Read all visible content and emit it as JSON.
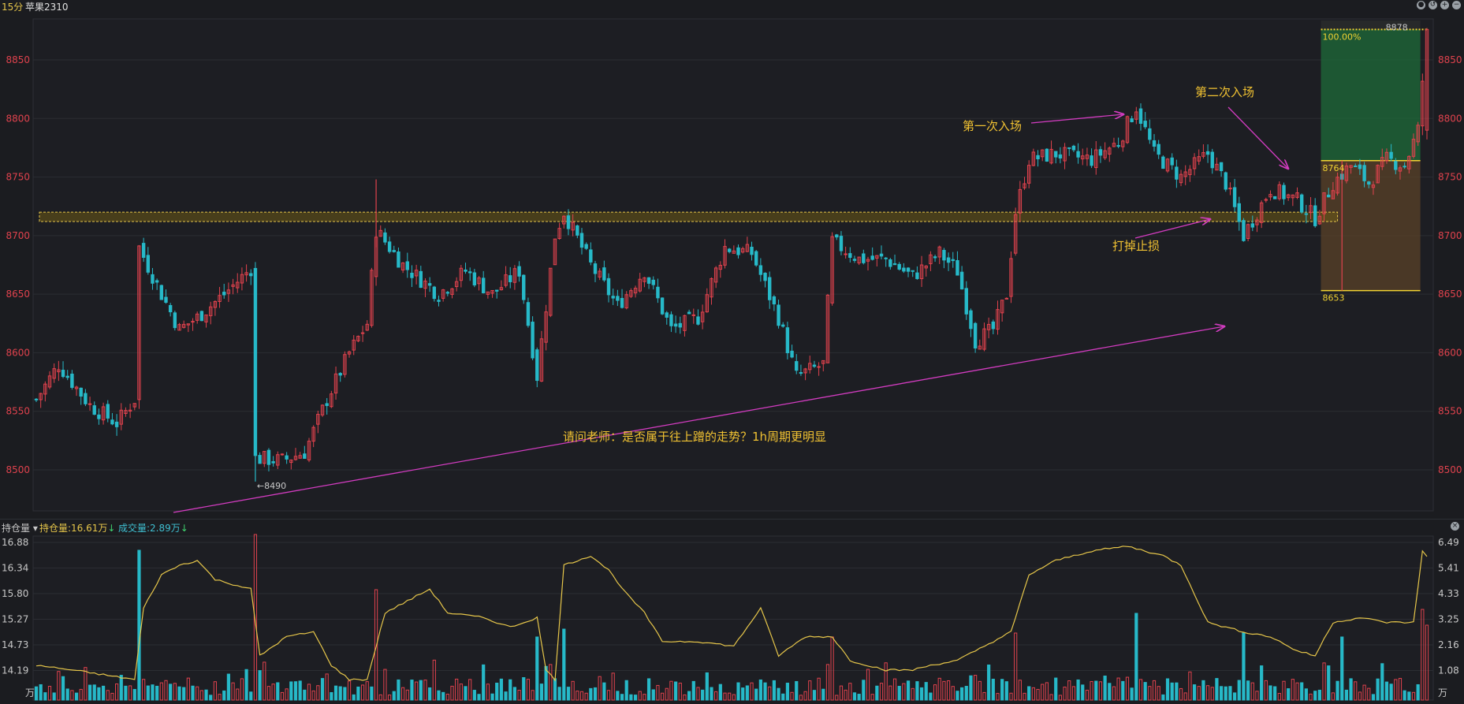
{
  "topbar": {
    "timeframe": "15分",
    "symbol": "苹果2310"
  },
  "colors": {
    "up": "#e0424d",
    "down": "#27b9c8",
    "line": "#e6c64a",
    "grid": "#2b2d33",
    "annotation": "#f1c232",
    "arrow": "#d23cc0",
    "target_zone": "#1e6b3a",
    "stop_zone": "#5a4228"
  },
  "icons": [
    "lock-icon",
    "undo-icon",
    "plus-icon",
    "minus-icon"
  ],
  "chart_data": [
    {
      "type": "candlestick",
      "title": "",
      "y_axis_ticks": [
        8500,
        8550,
        8600,
        8650,
        8700,
        8750,
        8800,
        8850
      ],
      "ylim": [
        8465,
        8885
      ],
      "grid": true,
      "anchor_points": [
        {
          "i": 0,
          "p": 8560
        },
        {
          "i": 5,
          "p": 8590
        },
        {
          "i": 12,
          "p": 8555
        },
        {
          "i": 18,
          "p": 8540
        },
        {
          "i": 22,
          "p": 8560
        },
        {
          "i": 23,
          "p": 8690
        },
        {
          "i": 28,
          "p": 8650
        },
        {
          "i": 32,
          "p": 8620
        },
        {
          "i": 36,
          "p": 8630
        },
        {
          "i": 42,
          "p": 8650
        },
        {
          "i": 48,
          "p": 8672
        },
        {
          "i": 49,
          "p": 8510
        },
        {
          "i": 55,
          "p": 8508
        },
        {
          "i": 60,
          "p": 8515
        },
        {
          "i": 65,
          "p": 8560
        },
        {
          "i": 70,
          "p": 8600
        },
        {
          "i": 74,
          "p": 8625
        },
        {
          "i": 76,
          "p": 8705
        },
        {
          "i": 82,
          "p": 8675
        },
        {
          "i": 90,
          "p": 8650
        },
        {
          "i": 96,
          "p": 8670
        },
        {
          "i": 102,
          "p": 8650
        },
        {
          "i": 108,
          "p": 8670
        },
        {
          "i": 112,
          "p": 8580
        },
        {
          "i": 116,
          "p": 8700
        },
        {
          "i": 118,
          "p": 8720
        },
        {
          "i": 124,
          "p": 8675
        },
        {
          "i": 130,
          "p": 8640
        },
        {
          "i": 136,
          "p": 8670
        },
        {
          "i": 142,
          "p": 8620
        },
        {
          "i": 148,
          "p": 8630
        },
        {
          "i": 154,
          "p": 8690
        },
        {
          "i": 160,
          "p": 8685
        },
        {
          "i": 166,
          "p": 8630
        },
        {
          "i": 170,
          "p": 8580
        },
        {
          "i": 176,
          "p": 8590
        },
        {
          "i": 178,
          "p": 8695
        },
        {
          "i": 184,
          "p": 8680
        },
        {
          "i": 190,
          "p": 8680
        },
        {
          "i": 196,
          "p": 8665
        },
        {
          "i": 202,
          "p": 8685
        },
        {
          "i": 206,
          "p": 8670
        },
        {
          "i": 210,
          "p": 8610
        },
        {
          "i": 214,
          "p": 8620
        },
        {
          "i": 217,
          "p": 8650
        },
        {
          "i": 219,
          "p": 8720
        },
        {
          "i": 222,
          "p": 8765
        },
        {
          "i": 228,
          "p": 8770
        },
        {
          "i": 236,
          "p": 8765
        },
        {
          "i": 242,
          "p": 8780
        },
        {
          "i": 246,
          "p": 8810
        },
        {
          "i": 250,
          "p": 8770
        },
        {
          "i": 256,
          "p": 8750
        },
        {
          "i": 262,
          "p": 8770
        },
        {
          "i": 266,
          "p": 8745
        },
        {
          "i": 270,
          "p": 8700
        },
        {
          "i": 276,
          "p": 8740
        },
        {
          "i": 282,
          "p": 8730
        },
        {
          "i": 286,
          "p": 8715
        },
        {
          "i": 290,
          "p": 8745
        },
        {
          "i": 294,
          "p": 8760
        },
        {
          "i": 298,
          "p": 8745
        },
        {
          "i": 302,
          "p": 8765
        },
        {
          "i": 306,
          "p": 8760
        },
        {
          "i": 309,
          "p": 8790
        },
        {
          "i": 311,
          "p": 8875
        }
      ],
      "candle_count": 312,
      "price_labels": {
        "low_marker": "8490",
        "top_label": "8878",
        "pct_label": "100.00%",
        "mid_label": "8764",
        "bottom_label": "8653"
      },
      "support_band": [
        8712,
        8720
      ],
      "target_zone": {
        "top": 8876,
        "entry": 8764,
        "stop": 8653,
        "from_index": 288,
        "to_index": 309
      }
    },
    {
      "type": "bar",
      "title": "",
      "left_axis_ticks": [
        "16.88",
        "16.34",
        "15.80",
        "15.27",
        "14.73",
        "14.19"
      ],
      "left_axis_unit": "万",
      "right_axis_ticks": [
        "6.49",
        "5.41",
        "4.33",
        "3.25",
        "2.16",
        "1.08"
      ],
      "right_axis_unit": "万",
      "series": [
        {
          "name": "持仓量",
          "value_label": "16.61万",
          "type": "line"
        },
        {
          "name": "成交量",
          "value_label": "2.89万",
          "type": "bar"
        }
      ],
      "oi_anchor_points": [
        {
          "i": 0,
          "v": 14.3
        },
        {
          "i": 8,
          "v": 14.2
        },
        {
          "i": 15,
          "v": 14.1
        },
        {
          "i": 22,
          "v": 14.0
        },
        {
          "i": 24,
          "v": 15.5
        },
        {
          "i": 28,
          "v": 16.2
        },
        {
          "i": 32,
          "v": 16.4
        },
        {
          "i": 36,
          "v": 16.5
        },
        {
          "i": 40,
          "v": 16.1
        },
        {
          "i": 44,
          "v": 16.0
        },
        {
          "i": 48,
          "v": 15.9
        },
        {
          "i": 50,
          "v": 14.5
        },
        {
          "i": 56,
          "v": 14.9
        },
        {
          "i": 62,
          "v": 15.0
        },
        {
          "i": 66,
          "v": 14.3
        },
        {
          "i": 70,
          "v": 14.0
        },
        {
          "i": 74,
          "v": 14.0
        },
        {
          "i": 78,
          "v": 15.4
        },
        {
          "i": 84,
          "v": 15.7
        },
        {
          "i": 88,
          "v": 15.9
        },
        {
          "i": 92,
          "v": 15.4
        },
        {
          "i": 100,
          "v": 15.3
        },
        {
          "i": 106,
          "v": 15.1
        },
        {
          "i": 112,
          "v": 15.3
        },
        {
          "i": 114,
          "v": 14.2
        },
        {
          "i": 116,
          "v": 14.0
        },
        {
          "i": 118,
          "v": 16.4
        },
        {
          "i": 124,
          "v": 16.6
        },
        {
          "i": 128,
          "v": 16.3
        },
        {
          "i": 132,
          "v": 15.8
        },
        {
          "i": 136,
          "v": 15.4
        },
        {
          "i": 140,
          "v": 14.8
        },
        {
          "i": 148,
          "v": 14.8
        },
        {
          "i": 156,
          "v": 14.7
        },
        {
          "i": 162,
          "v": 15.5
        },
        {
          "i": 166,
          "v": 14.5
        },
        {
          "i": 172,
          "v": 14.9
        },
        {
          "i": 178,
          "v": 14.9
        },
        {
          "i": 182,
          "v": 14.4
        },
        {
          "i": 186,
          "v": 14.3
        },
        {
          "i": 190,
          "v": 14.2
        },
        {
          "i": 196,
          "v": 14.2
        },
        {
          "i": 200,
          "v": 14.3
        },
        {
          "i": 206,
          "v": 14.4
        },
        {
          "i": 212,
          "v": 14.7
        },
        {
          "i": 218,
          "v": 15.0
        },
        {
          "i": 222,
          "v": 16.2
        },
        {
          "i": 228,
          "v": 16.5
        },
        {
          "i": 236,
          "v": 16.7
        },
        {
          "i": 244,
          "v": 16.8
        },
        {
          "i": 252,
          "v": 16.6
        },
        {
          "i": 256,
          "v": 16.4
        },
        {
          "i": 262,
          "v": 15.2
        },
        {
          "i": 270,
          "v": 15.0
        },
        {
          "i": 276,
          "v": 14.9
        },
        {
          "i": 282,
          "v": 14.6
        },
        {
          "i": 286,
          "v": 14.5
        },
        {
          "i": 290,
          "v": 15.2
        },
        {
          "i": 296,
          "v": 15.3
        },
        {
          "i": 302,
          "v": 15.2
        },
        {
          "i": 308,
          "v": 15.2
        },
        {
          "i": 310,
          "v": 16.7
        },
        {
          "i": 311,
          "v": 16.6
        }
      ]
    }
  ],
  "annotations": {
    "first_entry": "第一次入场",
    "second_entry": "第二次入场",
    "stopped_out": "打掉止损",
    "question": "请问老师：是否属于往上蹭的走势？1h周期更明显"
  },
  "sub_header": {
    "selector": "持仓量",
    "oi_label": "持仓量:16.61万",
    "vol_label": "成交量:2.89万"
  }
}
